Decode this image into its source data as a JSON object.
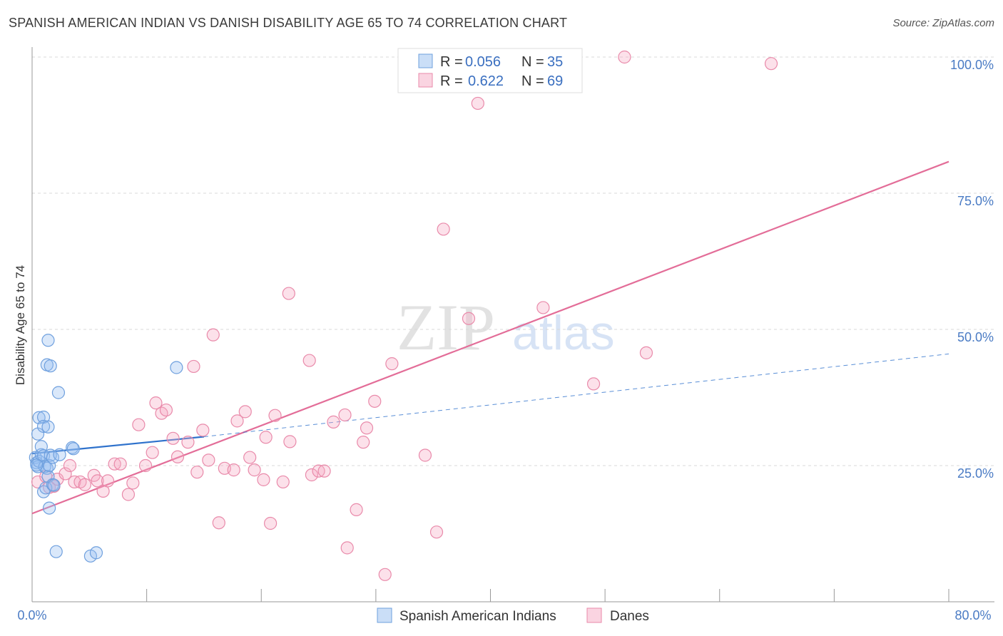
{
  "title": "SPANISH AMERICAN INDIAN VS DANISH DISABILITY AGE 65 TO 74 CORRELATION CHART",
  "source": "Source: ZipAtlas.com",
  "watermark": {
    "zip": "ZIP",
    "atlas": "atlas"
  },
  "colors": {
    "blue": "#6fa0de",
    "blue_fill": "rgba(150,190,240,0.35)",
    "blue_line": "#2f72cc",
    "pink": "#e98aaa",
    "pink_fill": "rgba(245,170,195,0.35)",
    "pink_line": "#e36d98",
    "tick": "#4a7bc4"
  },
  "legend": {
    "r_label": "R =",
    "n_label": "N =",
    "blue": {
      "r": "0.056",
      "n": "35"
    },
    "pink": {
      "r": "0.622",
      "n": "69"
    }
  },
  "bottom_legend": {
    "blue": "Spanish American Indians",
    "pink": "Danes"
  },
  "chart_data": {
    "type": "scatter",
    "title": "SPANISH AMERICAN INDIAN VS DANISH DISABILITY AGE 65 TO 74 CORRELATION CHART",
    "xlabel": "",
    "ylabel": "Disability Age 65 to 74",
    "xlim": [
      0,
      80
    ],
    "ylim": [
      0,
      100
    ],
    "x_tick_labels": [
      "0.0%",
      "80.0%"
    ],
    "y_ticks": [
      25,
      50,
      75,
      100
    ],
    "y_tick_labels": [
      "25.0%",
      "50.0%",
      "75.0%",
      "100.0%"
    ],
    "grid": true,
    "legend_position": "top-center",
    "series": [
      {
        "name": "Spanish American Indians",
        "color": "#6fa0de",
        "r": 0.056,
        "n": 35,
        "trend": {
          "x": [
            0,
            15
          ],
          "y": [
            27.2,
            30.3
          ],
          "dashed_to": [
            80,
            45.5
          ]
        },
        "points": [
          [
            0.3,
            26.5
          ],
          [
            0.4,
            25.5
          ],
          [
            0.5,
            24.8
          ],
          [
            0.6,
            25.8
          ],
          [
            0.8,
            27.0
          ],
          [
            0.5,
            30.8
          ],
          [
            0.6,
            33.8
          ],
          [
            1.0,
            33.9
          ],
          [
            1.0,
            32.2
          ],
          [
            1.4,
            32.1
          ],
          [
            0.8,
            28.5
          ],
          [
            1.0,
            26.8
          ],
          [
            1.1,
            24.8
          ],
          [
            1.3,
            24.5
          ],
          [
            1.4,
            23.0
          ],
          [
            1.5,
            25.0
          ],
          [
            1.6,
            26.9
          ],
          [
            1.8,
            26.5
          ],
          [
            2.4,
            27.0
          ],
          [
            1.3,
            43.5
          ],
          [
            1.6,
            43.3
          ],
          [
            1.4,
            48.0
          ],
          [
            2.3,
            38.4
          ],
          [
            3.5,
            28.3
          ],
          [
            3.6,
            28.1
          ],
          [
            12.6,
            43.0
          ],
          [
            1.0,
            20.2
          ],
          [
            1.2,
            20.9
          ],
          [
            1.8,
            21.5
          ],
          [
            1.9,
            21.4
          ],
          [
            1.5,
            17.2
          ],
          [
            2.1,
            9.2
          ],
          [
            5.1,
            8.4
          ],
          [
            5.6,
            9.0
          ],
          [
            0.4,
            25.1
          ]
        ]
      },
      {
        "name": "Danes",
        "color": "#e98aaa",
        "r": 0.622,
        "n": 69,
        "trend": {
          "x": [
            0,
            80
          ],
          "y": [
            16.2,
            80.8
          ]
        },
        "points": [
          [
            0.5,
            22.0
          ],
          [
            1.2,
            23.0
          ],
          [
            1.5,
            21.0
          ],
          [
            1.9,
            21.2
          ],
          [
            2.2,
            22.5
          ],
          [
            2.9,
            23.5
          ],
          [
            3.3,
            25.0
          ],
          [
            3.7,
            22.0
          ],
          [
            4.2,
            22.0
          ],
          [
            4.6,
            21.5
          ],
          [
            5.4,
            23.2
          ],
          [
            5.7,
            22.2
          ],
          [
            6.2,
            20.3
          ],
          [
            6.6,
            22.2
          ],
          [
            7.2,
            25.3
          ],
          [
            7.7,
            25.3
          ],
          [
            8.4,
            19.7
          ],
          [
            8.8,
            21.8
          ],
          [
            9.3,
            32.5
          ],
          [
            9.9,
            25.0
          ],
          [
            10.5,
            27.4
          ],
          [
            10.8,
            36.5
          ],
          [
            11.3,
            34.6
          ],
          [
            11.7,
            35.2
          ],
          [
            12.3,
            30.0
          ],
          [
            12.7,
            26.6
          ],
          [
            13.6,
            29.3
          ],
          [
            14.1,
            43.2
          ],
          [
            14.4,
            23.8
          ],
          [
            14.9,
            31.5
          ],
          [
            15.4,
            26.0
          ],
          [
            15.8,
            49.0
          ],
          [
            16.3,
            14.5
          ],
          [
            16.8,
            24.5
          ],
          [
            17.6,
            24.2
          ],
          [
            17.9,
            33.2
          ],
          [
            18.6,
            34.9
          ],
          [
            19.0,
            26.5
          ],
          [
            19.4,
            24.2
          ],
          [
            20.2,
            22.4
          ],
          [
            20.4,
            30.2
          ],
          [
            20.8,
            14.4
          ],
          [
            21.2,
            34.2
          ],
          [
            21.9,
            22.0
          ],
          [
            22.4,
            56.6
          ],
          [
            22.5,
            29.4
          ],
          [
            24.2,
            44.3
          ],
          [
            24.4,
            23.3
          ],
          [
            25.0,
            24.0
          ],
          [
            25.5,
            24.0
          ],
          [
            26.3,
            33.0
          ],
          [
            27.3,
            34.3
          ],
          [
            27.5,
            9.9
          ],
          [
            28.3,
            16.9
          ],
          [
            28.9,
            29.3
          ],
          [
            29.2,
            31.9
          ],
          [
            29.9,
            36.8
          ],
          [
            30.8,
            5.0
          ],
          [
            31.4,
            43.7
          ],
          [
            34.3,
            26.9
          ],
          [
            35.3,
            12.8
          ],
          [
            35.9,
            68.4
          ],
          [
            38.1,
            52.0
          ],
          [
            38.9,
            91.5
          ],
          [
            44.6,
            54.0
          ],
          [
            49.0,
            40.0
          ],
          [
            51.7,
            100.0
          ],
          [
            53.6,
            45.7
          ],
          [
            64.5,
            98.8
          ]
        ]
      }
    ]
  }
}
